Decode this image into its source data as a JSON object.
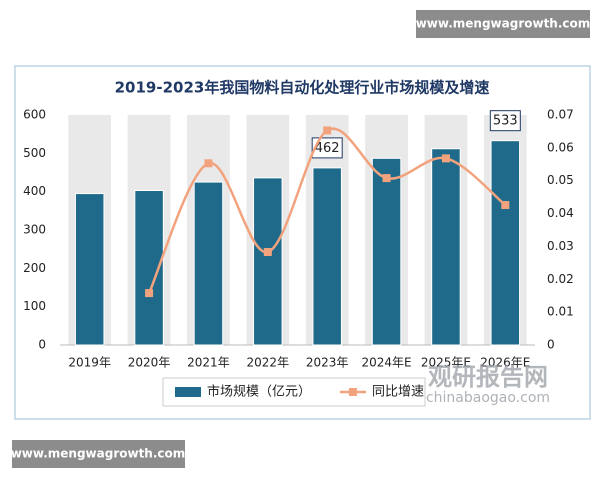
{
  "header_url": "www.mengwagrowth.com",
  "footer_url": "www.mengwagrowth.com",
  "watermark": {
    "name": "观研报告网",
    "url": "chinabaogao.com"
  },
  "chart_data": {
    "type": "bar-line",
    "title": "2019-2023年我国物料自动化处理行业市场规模及增速",
    "categories": [
      "2019年",
      "2020年",
      "2021年",
      "2022年",
      "2023年",
      "2024年E",
      "2025年E",
      "2026年E"
    ],
    "series": [
      {
        "name": "市场规模（亿元）",
        "type": "bar",
        "color": "#1f6a8a",
        "values": [
          395,
          403,
          425,
          436,
          462,
          487,
          512,
          533
        ],
        "value_labels": [
          null,
          null,
          null,
          null,
          "462",
          null,
          null,
          "533"
        ]
      },
      {
        "name": "同比增速",
        "type": "line",
        "axis": "y2",
        "color": "#f2a37e",
        "smooth": true,
        "values": [
          null,
          0.0158,
          0.0553,
          0.0283,
          0.0653,
          0.0508,
          0.0568,
          0.0426
        ]
      }
    ],
    "ylim": [
      0,
      600
    ],
    "yticks": [
      0,
      100,
      200,
      300,
      400,
      500,
      600
    ],
    "y2lim": [
      0,
      0.07
    ],
    "y2ticks": [
      {
        "value": 0,
        "label": "0"
      },
      0.01,
      0.02,
      0.03,
      0.04,
      0.05,
      0.06,
      0.07
    ],
    "legend": "bottom"
  }
}
